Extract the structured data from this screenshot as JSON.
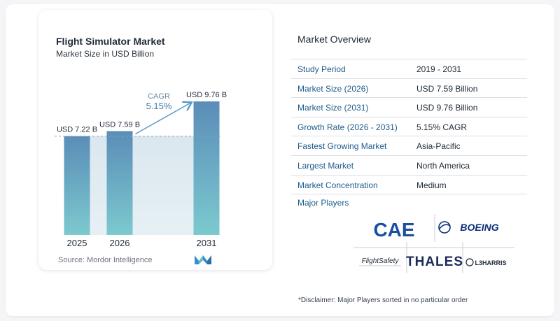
{
  "chart_data": {
    "type": "bar",
    "title": "Flight Simulator Market",
    "subtitle": "Market Size in USD Billion",
    "categories": [
      "2025",
      "2026",
      "2031"
    ],
    "values": [
      7.22,
      7.59,
      9.76
    ],
    "data_labels": [
      "USD 7.22 B",
      "USD 7.59 B",
      "USD 9.76 B"
    ],
    "cagr_label": "CAGR",
    "cagr_value": "5.15%",
    "xlabel": "",
    "ylabel": "",
    "ylim": [
      0,
      9.76
    ],
    "grid": false,
    "colors": {
      "bar_top": "#5b8db8",
      "bar_bottom": "#7cc9cf",
      "band": "#dbe7ef",
      "arrow": "#5b9bc9",
      "cagr": "#3d79a8"
    }
  },
  "source": "Source:  Mordor Intelligence",
  "overview": {
    "title": "Market Overview",
    "rows": [
      {
        "label": "Study Period",
        "value": "2019 - 2031"
      },
      {
        "label": "Market Size (2026)",
        "value": "USD 7.59 Billion"
      },
      {
        "label": "Market Size (2031)",
        "value": "USD 9.76 Billion"
      },
      {
        "label": "Growth Rate (2026 - 2031)",
        "value": "5.15% CAGR"
      },
      {
        "label": "Fastest Growing Market",
        "value": "Asia-Pacific"
      },
      {
        "label": "Largest Market",
        "value": "North America"
      },
      {
        "label": "Market Concentration",
        "value": "Medium"
      }
    ]
  },
  "major_players": {
    "title": "Major Players",
    "logos": [
      {
        "name": "CAE",
        "text": "CAE"
      },
      {
        "name": "Boeing",
        "text": "BOEING"
      },
      {
        "name": "FlightSafety",
        "text": "FlightSafety"
      },
      {
        "name": "Thales",
        "text": "THALES"
      },
      {
        "name": "L3Harris",
        "text": "L3HARRIS"
      }
    ]
  },
  "disclaimer": "*Disclaimer: Major Players sorted in no particular order"
}
